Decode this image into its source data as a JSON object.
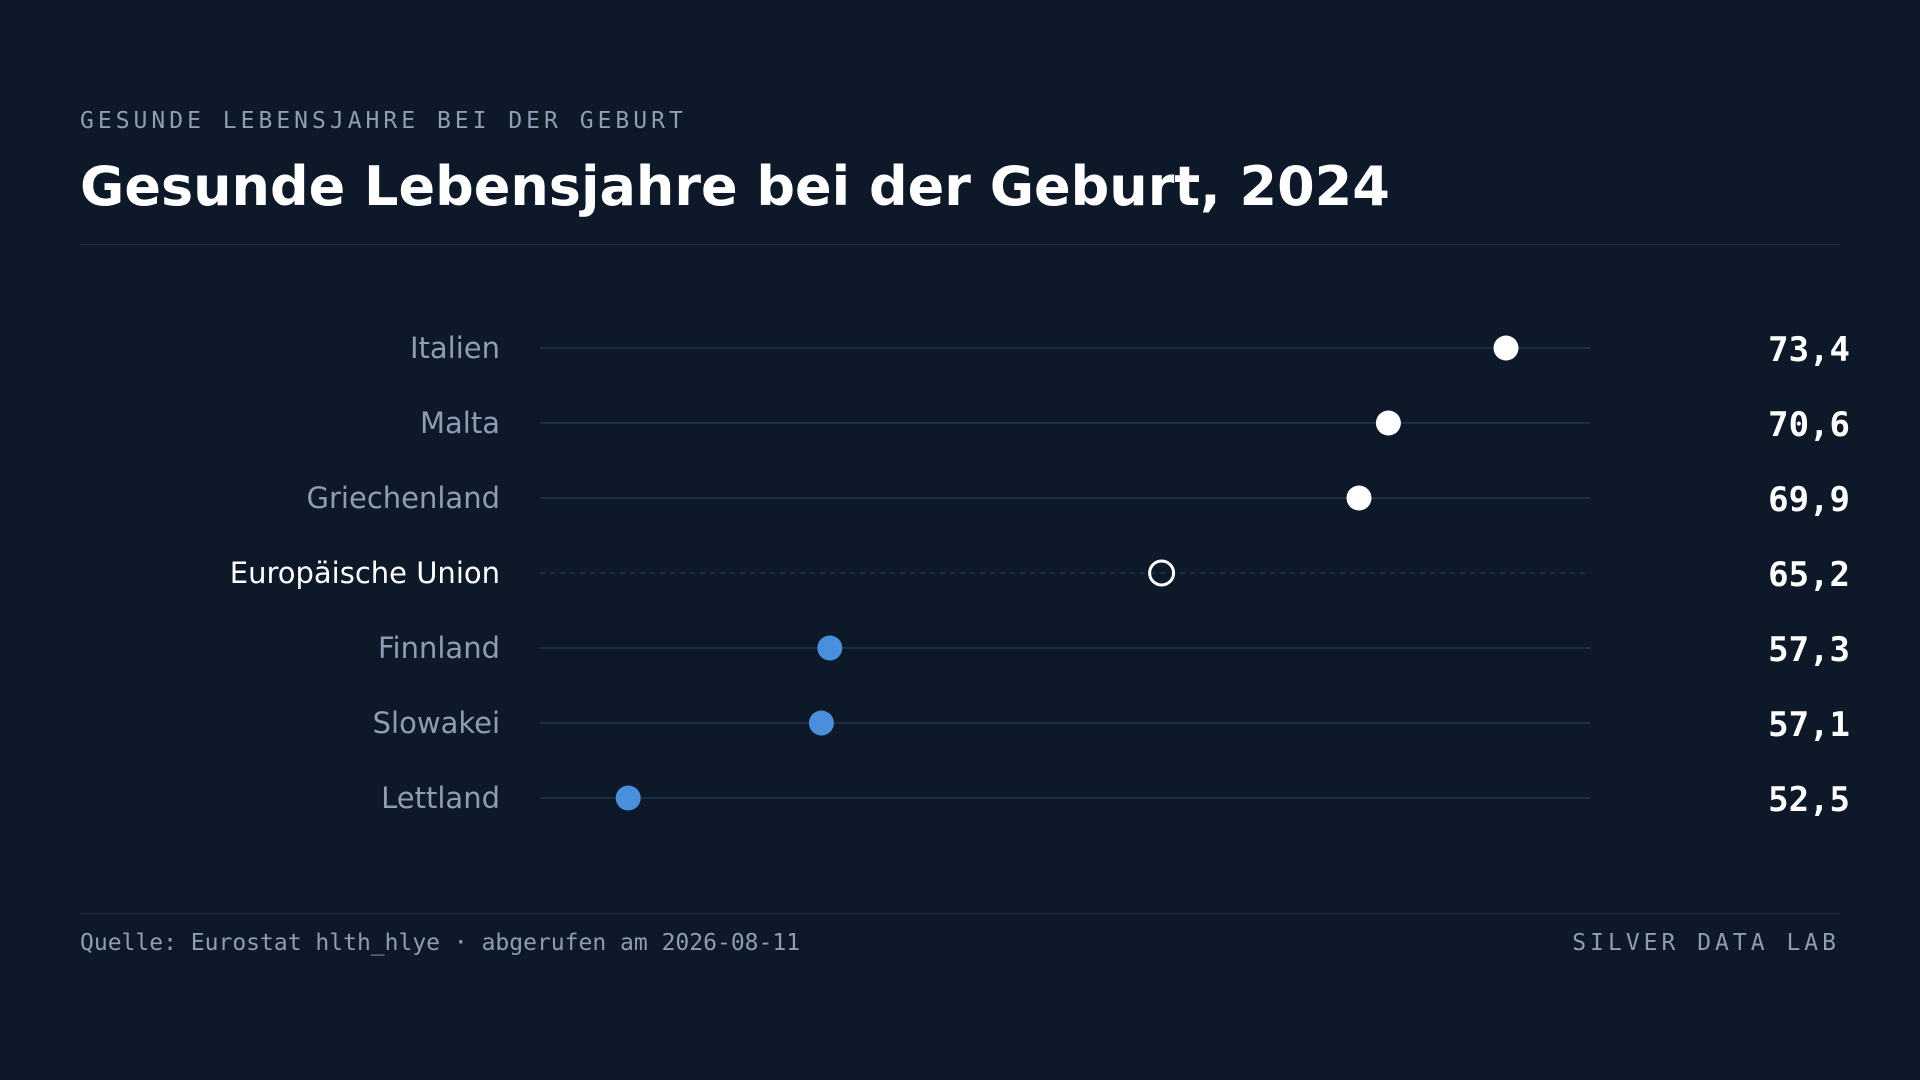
{
  "header": {
    "kicker": "GESUNDE LEBENSJAHRE BEI DER GEBURT",
    "title": "Gesunde Lebensjahre bei der Geburt, 2024"
  },
  "footer": {
    "source": "Quelle: Eurostat hlth_hlye · abgerufen am 2026-08-11",
    "brand": "SILVER DATA LAB"
  },
  "colors": {
    "background": "#0d1929",
    "above_average": "#ffffff",
    "below_average": "#4a8fdb",
    "reference": "#ffffff",
    "track": "#1f3550",
    "label": "#8e9cb4",
    "label_highlight": "#ffffff",
    "value": "#ffffff"
  },
  "chart_data": {
    "type": "scatter",
    "subtype": "dot-plot",
    "categories": [
      "Italien",
      "Malta",
      "Griechenland",
      "Europäische Union",
      "Finnland",
      "Slowakei",
      "Lettland"
    ],
    "values": [
      73.4,
      70.6,
      69.9,
      65.2,
      57.3,
      57.1,
      52.5
    ],
    "value_labels": [
      "73,4",
      "70,6",
      "69,9",
      "65,2",
      "57,3",
      "57,1",
      "52,5"
    ],
    "reference_category": "Europäische Union",
    "xlim": [
      50.4,
      75.4
    ],
    "grid": false
  }
}
